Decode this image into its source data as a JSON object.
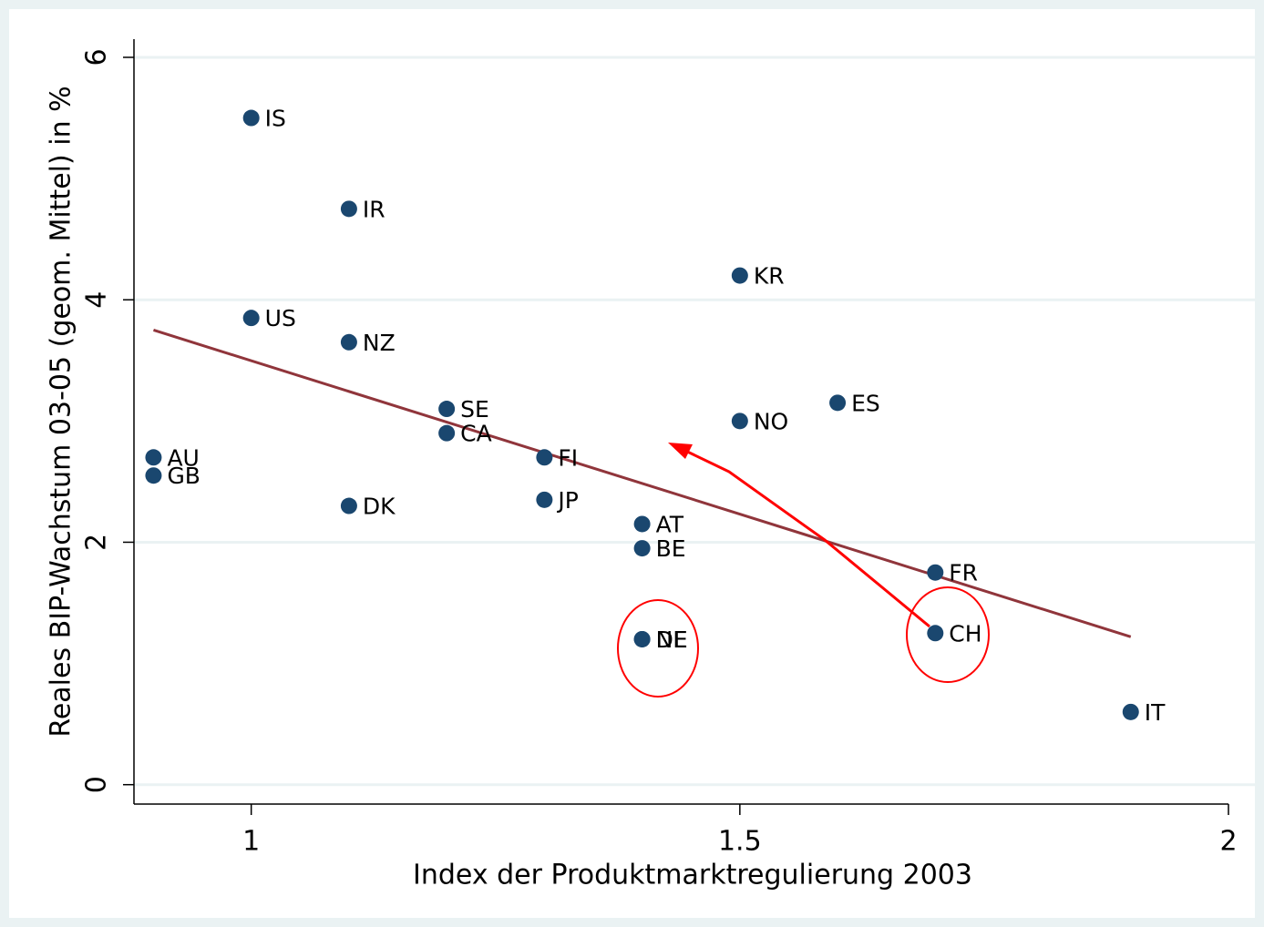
{
  "chart_data": {
    "type": "scatter",
    "xlabel": "Index der Produktmarktregulierung 2003",
    "ylabel": "Reales BIP-Wachstum 03-05 (geom. Mittel) in %",
    "labels": [
      "IS",
      "IR",
      "KR",
      "US",
      "NZ",
      "SE",
      "CA",
      "ES",
      "NO",
      "AU",
      "GB",
      "FI",
      "JP",
      "DK",
      "AT",
      "BE",
      "FR",
      "NL",
      "DE",
      "CH",
      "IT"
    ],
    "x": [
      1.0,
      1.1,
      1.5,
      1.0,
      1.1,
      1.2,
      1.2,
      1.6,
      1.5,
      0.9,
      0.9,
      1.3,
      1.3,
      1.1,
      1.4,
      1.4,
      1.7,
      1.4,
      1.4,
      1.7,
      1.9
    ],
    "values": [
      5.5,
      4.75,
      4.2,
      3.85,
      3.65,
      3.1,
      2.9,
      3.15,
      3.0,
      2.7,
      2.55,
      2.7,
      2.35,
      2.3,
      2.15,
      1.95,
      1.75,
      1.2,
      1.2,
      1.25,
      0.6
    ],
    "color": "#1a476f",
    "fit": {
      "x": [
        0.9,
        1.9
      ],
      "values": [
        3.75,
        1.22
      ],
      "color": "#90353b"
    },
    "xlim": [
      0.88,
      2.0
    ],
    "ylim": [
      -0.16,
      6.15
    ],
    "xticks": [
      1,
      1.5,
      2
    ],
    "yticks": [
      0,
      2,
      4,
      6
    ],
    "grid": true
  }
}
